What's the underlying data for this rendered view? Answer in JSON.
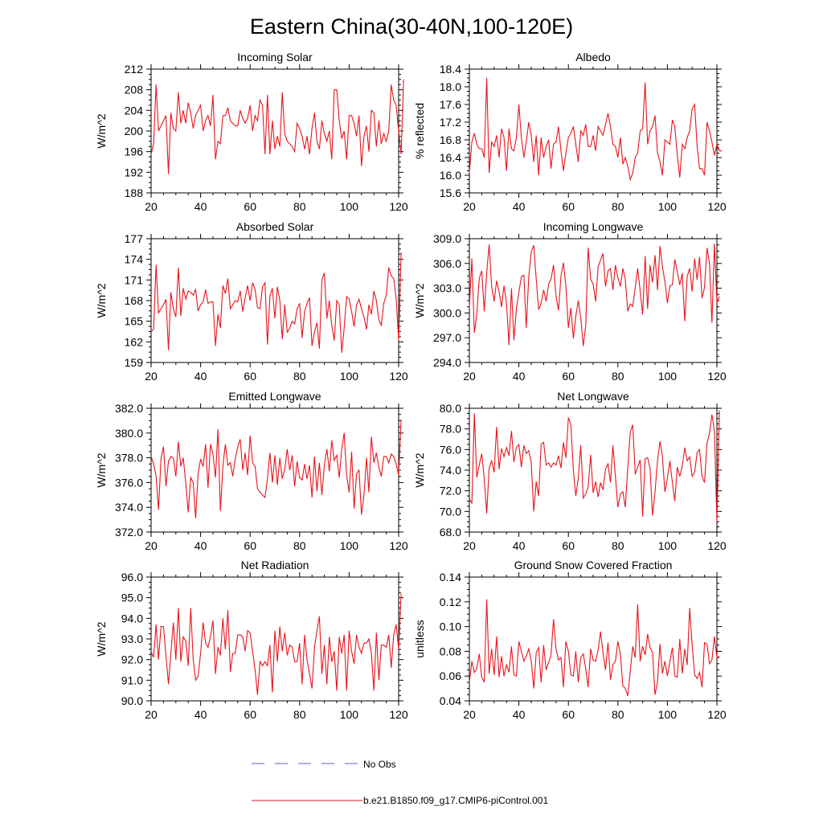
{
  "title": "Eastern China(30-40N,100-120E)",
  "colors": {
    "series": "#e8141c",
    "obs": "#5b5fc7",
    "axis": "#000000"
  },
  "legend": {
    "obs_label": "No Obs",
    "model_label": "b.e21.B1850.f09_g17.CMIP6-piControl.001"
  },
  "chart_data": [
    {
      "type": "line",
      "title": "Incoming Solar",
      "ylabel": "W/m^2",
      "xlim": [
        20,
        120
      ],
      "xticks": [
        20,
        40,
        60,
        80,
        100,
        120
      ],
      "ylim": [
        188,
        212
      ],
      "yticks": [
        "188",
        "192",
        "196",
        "200",
        "204",
        "208",
        "212"
      ],
      "x_start": 20,
      "values": [
        195.5,
        197.5,
        209,
        200,
        201,
        202,
        203,
        191.7,
        203.5,
        200.5,
        200,
        207.5,
        201.5,
        204,
        201.5,
        205.5,
        203.5,
        200.5,
        203,
        204,
        205,
        200,
        202,
        203,
        201,
        207,
        194.5,
        198,
        197.5,
        203,
        203,
        204.5,
        202,
        201.5,
        201,
        201,
        204,
        202.5,
        201.5,
        202.5,
        205,
        200,
        203,
        202,
        206,
        205,
        195.5,
        207,
        195.5,
        202,
        196.5,
        199,
        197,
        207.5,
        199.5,
        198,
        197.5,
        197,
        196,
        201.5,
        200.5,
        199,
        196.5,
        199,
        195.5,
        200.5,
        203.5,
        198,
        196.5,
        202,
        199.5,
        198,
        200,
        194.5,
        208,
        208,
        202,
        198.5,
        200,
        194.5,
        203,
        203,
        201.5,
        199,
        203,
        193.2,
        199,
        201,
        196,
        204,
        203.5,
        197,
        202,
        197.5,
        199.5,
        198,
        200,
        209,
        206,
        205,
        200,
        195.5,
        210
      ]
    },
    {
      "type": "line",
      "title": "Albedo",
      "ylabel": "% reflected",
      "xlim": [
        20,
        120
      ],
      "xticks": [
        20,
        40,
        60,
        80,
        100,
        120
      ],
      "ylim": [
        15.6,
        18.4
      ],
      "yticks": [
        "15.6",
        "16.0",
        "16.4",
        "16.8",
        "17.2",
        "17.6",
        "18.0",
        "18.4"
      ],
      "x_start": 20,
      "values": [
        16.05,
        16.75,
        16.95,
        16.7,
        16.6,
        16.6,
        16.4,
        18.2,
        16.05,
        16.75,
        16.65,
        16.9,
        16.4,
        17.05,
        16.85,
        16.1,
        17.05,
        16.6,
        16.55,
        16.85,
        17.6,
        16.85,
        16.4,
        16.75,
        17.2,
        16.9,
        16.3,
        16.9,
        16.0,
        16.85,
        16.4,
        16.65,
        16.8,
        16.15,
        16.7,
        16.75,
        17.1,
        16.55,
        16.1,
        16.5,
        16.85,
        16.95,
        17.1,
        16.7,
        16.3,
        17.0,
        16.9,
        17.15,
        16.65,
        16.65,
        16.9,
        16.55,
        17.1,
        17.0,
        16.9,
        17.15,
        17.4,
        17.1,
        16.7,
        16.65,
        16.4,
        16.85,
        16.25,
        16.4,
        16.2,
        15.9,
        16.05,
        16.4,
        16.5,
        17.0,
        17.05,
        18.1,
        16.7,
        17.0,
        17.1,
        17.35,
        16.5,
        16.3,
        16.0,
        16.8,
        16.75,
        16.7,
        17.25,
        17.1,
        16.45,
        15.95,
        16.7,
        16.6,
        16.85,
        17.0,
        17.5,
        17.6,
        16.65,
        16.15,
        16.15,
        16.0,
        17.2,
        17.0,
        16.75,
        16.45,
        16.7,
        16.55,
        16.55
      ]
    },
    {
      "type": "line",
      "title": "Absorbed Solar",
      "ylabel": "W/m^2",
      "xlim": [
        20,
        120
      ],
      "xticks": [
        20,
        40,
        60,
        80,
        100,
        120
      ],
      "ylim": [
        159,
        177
      ],
      "yticks": [
        "159",
        "162",
        "165",
        "168",
        "171",
        "174",
        "177"
      ],
      "x_start": 20,
      "values": [
        163.5,
        163.8,
        173.2,
        166.2,
        166.8,
        167.4,
        168.2,
        160.8,
        169.2,
        166.8,
        165.6,
        172.8,
        165.8,
        169.8,
        168.2,
        169.4,
        169.2,
        168.8,
        169.6,
        166.5,
        167.4,
        167.8,
        169.6,
        167.6,
        167.8,
        167.8,
        161.4,
        166.0,
        164.0,
        170.2,
        169.0,
        171.2,
        166.8,
        167.4,
        168.0,
        167.8,
        169.4,
        166.4,
        168.4,
        170.2,
        168.0,
        170.6,
        169.6,
        167.0,
        166.8,
        170.0,
        170.6,
        161.6,
        168.6,
        169.8,
        165.4,
        170.0,
        168.0,
        162.4,
        167.4,
        163.4,
        164.0,
        165.0,
        164.6,
        166.8,
        167.6,
        162.6,
        166.4,
        167.6,
        168.4,
        161.4,
        163.4,
        164.8,
        161.0,
        171.0,
        172.0,
        165.4,
        168.0,
        164.4,
        162.2,
        168.0,
        167.4,
        160.4,
        164.0,
        168.6,
        168.2,
        166.4,
        164.2,
        167.4,
        168.2,
        166.8,
        165.6,
        163.8,
        167.4,
        166.0,
        169.4,
        168.0,
        165.2,
        164.4,
        167.6,
        168.8,
        172.8,
        171.6,
        171.2,
        168.4,
        162.2,
        175.0
      ]
    },
    {
      "type": "line",
      "title": "Incoming Longwave",
      "ylabel": "W/m^2",
      "xlim": [
        20,
        120
      ],
      "xticks": [
        20,
        40,
        60,
        80,
        100,
        120
      ],
      "ylim": [
        294.0,
        309.0
      ],
      "yticks": [
        "294.0",
        "297.0",
        "300.0",
        "303.0",
        "306.0",
        "309.0"
      ],
      "x_start": 20,
      "values": [
        300.7,
        306.6,
        297.6,
        299.8,
        304.2,
        305.1,
        300.2,
        304.9,
        308.3,
        303.2,
        301.4,
        303.9,
        302.6,
        300.7,
        303.3,
        301.2,
        296.1,
        303.0,
        296.7,
        300.5,
        302.5,
        304.4,
        304.6,
        298.2,
        304.4,
        307.4,
        308.2,
        304.1,
        300.4,
        301.2,
        302.8,
        301.4,
        303.5,
        304.1,
        305.8,
        302.1,
        300.3,
        304.5,
        306.1,
        303.2,
        298.2,
        300.6,
        296.9,
        299.6,
        301.5,
        299.4,
        296.0,
        298.5,
        307.9,
        304.1,
        303.5,
        301.4,
        305.6,
        306.4,
        307.2,
        303.2,
        305.1,
        305.4,
        302.8,
        305.8,
        304.3,
        303.2,
        305.4,
        304.1,
        300.2,
        301.1,
        300.8,
        303.1,
        305.4,
        302.7,
        299.8,
        306.9,
        300.5,
        305.8,
        303.7,
        307.0,
        302.8,
        308.1,
        305.6,
        303.8,
        301.2,
        303.3,
        303.4,
        306.5,
        305.0,
        303.4,
        304.8,
        299.0,
        304.4,
        305.4,
        302.6,
        306.6,
        304.0,
        306.8,
        301.8,
        303.1,
        307.9,
        306.0,
        298.8,
        308.4,
        301.2,
        302.0
      ]
    },
    {
      "type": "line",
      "title": "Emitted Longwave",
      "ylabel": "W/m^2",
      "xlim": [
        20,
        120
      ],
      "xticks": [
        20,
        40,
        60,
        80,
        100,
        120
      ],
      "ylim": [
        372.0,
        382.0
      ],
      "yticks": [
        "372.0",
        "374.0",
        "376.0",
        "378.0",
        "380.0",
        "382.0"
      ],
      "x_start": 20,
      "values": [
        378.1,
        377.5,
        376.5,
        373.8,
        377.9,
        378.9,
        375.7,
        377.7,
        378.1,
        378.0,
        376.5,
        379.3,
        377.3,
        378.0,
        376.0,
        373.6,
        376.4,
        376.0,
        373.1,
        376.7,
        377.9,
        377.3,
        379.1,
        375.6,
        379.1,
        378.3,
        376.4,
        380.3,
        373.7,
        377.3,
        379.1,
        377.4,
        377.6,
        376.5,
        377.9,
        378.9,
        379.5,
        377.0,
        378.4,
        376.6,
        379.8,
        377.6,
        377.3,
        375.5,
        375.2,
        375.0,
        374.8,
        376.3,
        378.4,
        376.0,
        378.2,
        375.8,
        378.0,
        376.3,
        377.1,
        378.7,
        377.0,
        378.2,
        375.7,
        377.7,
        376.4,
        376.2,
        377.5,
        376.3,
        377.4,
        374.8,
        378.1,
        375.3,
        377.6,
        375.0,
        377.4,
        378.7,
        376.9,
        379.4,
        377.8,
        378.2,
        376.4,
        378.7,
        380.0,
        376.6,
        375.2,
        378.5,
        373.9,
        376.7,
        377.0,
        373.4,
        375.0,
        378.0,
        375.2,
        379.7,
        377.6,
        378.4,
        377.2,
        376.5,
        378.1,
        378.1,
        377.6,
        378.3,
        378.1,
        377.5,
        376.6,
        381.1
      ]
    },
    {
      "type": "line",
      "title": "Net Longwave",
      "ylabel": "W/m^2",
      "xlim": [
        20,
        120
      ],
      "xticks": [
        20,
        40,
        60,
        80,
        100,
        120
      ],
      "ylim": [
        68.0,
        80.0
      ],
      "yticks": [
        "68.0",
        "70.0",
        "72.0",
        "74.0",
        "76.0",
        "78.0",
        "80.0"
      ],
      "x_start": 20,
      "values": [
        71.2,
        70.8,
        79.5,
        73.3,
        74.5,
        75.6,
        73.2,
        69.8,
        74.2,
        74.9,
        73.8,
        78.2,
        74.1,
        76.1,
        75.3,
        76.2,
        75.4,
        77.8,
        74.8,
        76.2,
        76.5,
        74.3,
        76.4,
        75.6,
        75.9,
        74.7,
        70.0,
        72.9,
        71.5,
        76.5,
        76.7,
        74.5,
        74.7,
        74.3,
        74.7,
        74.5,
        75.4,
        74.2,
        76.7,
        75.2,
        79.1,
        78.4,
        74.0,
        71.5,
        73.2,
        76.4,
        71.3,
        71.7,
        72.4,
        75.5,
        71.8,
        72.9,
        71.4,
        72.8,
        72.1,
        74.1,
        74.6,
        72.8,
        76.4,
        73.4,
        70.4,
        71.7,
        71.9,
        70.4,
        74.2,
        77.7,
        78.4,
        73.6,
        74.3,
        75.0,
        69.5,
        75.1,
        75.2,
        74.2,
        69.6,
        71.9,
        74.9,
        76.8,
        75.3,
        71.9,
        73.2,
        74.9,
        72.8,
        71.0,
        74.3,
        73.4,
        74.4,
        76.2,
        74.9,
        75.3,
        73.4,
        73.8,
        75.7,
        76.0,
        73.4,
        72.8,
        76.6,
        77.6,
        79.4,
        77.8,
        69.0,
        79.8
      ]
    },
    {
      "type": "line",
      "title": "Net Radiation",
      "ylabel": "W/m^2",
      "xlim": [
        20,
        120
      ],
      "xticks": [
        20,
        40,
        60,
        80,
        100,
        120
      ],
      "ylim": [
        90.0,
        96.0
      ],
      "yticks": [
        "90.0",
        "91.0",
        "92.0",
        "93.0",
        "94.0",
        "95.0",
        "96.0"
      ],
      "x_start": 20,
      "values": [
        92.4,
        92.1,
        93.7,
        92.0,
        93.6,
        93.6,
        92.2,
        90.8,
        92.3,
        93.8,
        92.0,
        94.5,
        91.9,
        93.1,
        92.9,
        91.7,
        94.5,
        92.0,
        91.0,
        91.2,
        92.3,
        93.8,
        92.8,
        92.6,
        93.1,
        93.9,
        91.3,
        92.6,
        92.2,
        94.0,
        92.5,
        94.4,
        91.4,
        92.3,
        92.3,
        93.2,
        93.2,
        93.1,
        92.4,
        93.4,
        93.3,
        92.4,
        91.5,
        90.3,
        91.9,
        91.7,
        91.9,
        91.7,
        92.7,
        90.4,
        93.4,
        91.9,
        93.6,
        92.4,
        93.3,
        92.2,
        92.7,
        92.6,
        91.9,
        91.9,
        92.8,
        90.8,
        93.2,
        92.0,
        91.3,
        90.6,
        92.6,
        93.4,
        94.1,
        91.3,
        92.7,
        90.8,
        93.1,
        91.9,
        92.4,
        90.5,
        93.1,
        92.3,
        93.2,
        90.5,
        93.4,
        92.4,
        91.8,
        93.2,
        92.6,
        92.3,
        92.8,
        92.8,
        93.0,
        92.3,
        90.5,
        93.3,
        91.0,
        92.7,
        92.7,
        92.6,
        93.2,
        91.6,
        93.2,
        93.7,
        92.5,
        95.2
      ]
    },
    {
      "type": "line",
      "title": "Ground Snow Covered Fraction",
      "ylabel": "unitless",
      "xlim": [
        20,
        120
      ],
      "xticks": [
        20,
        40,
        60,
        80,
        100,
        120
      ],
      "ylim": [
        0.04,
        0.14
      ],
      "yticks": [
        "0.04",
        "0.06",
        "0.08",
        "0.10",
        "0.12",
        "0.14"
      ],
      "x_start": 20,
      "values": [
        0.055,
        0.072,
        0.063,
        0.066,
        0.078,
        0.059,
        0.055,
        0.122,
        0.062,
        0.082,
        0.061,
        0.092,
        0.059,
        0.076,
        0.06,
        0.069,
        0.063,
        0.084,
        0.061,
        0.06,
        0.088,
        0.08,
        0.072,
        0.076,
        0.082,
        0.072,
        0.05,
        0.079,
        0.083,
        0.055,
        0.085,
        0.065,
        0.071,
        0.077,
        0.106,
        0.082,
        0.073,
        0.075,
        0.051,
        0.088,
        0.08,
        0.061,
        0.06,
        0.08,
        0.055,
        0.075,
        0.078,
        0.066,
        0.051,
        0.082,
        0.073,
        0.072,
        0.081,
        0.096,
        0.079,
        0.065,
        0.087,
        0.057,
        0.069,
        0.072,
        0.088,
        0.078,
        0.052,
        0.05,
        0.044,
        0.064,
        0.084,
        0.075,
        0.118,
        0.072,
        0.084,
        0.077,
        0.094,
        0.083,
        0.079,
        0.045,
        0.055,
        0.086,
        0.062,
        0.072,
        0.06,
        0.072,
        0.083,
        0.06,
        0.059,
        0.09,
        0.062,
        0.082,
        0.069,
        0.115,
        0.085,
        0.061,
        0.058,
        0.063,
        0.051,
        0.087,
        0.086,
        0.07,
        0.073,
        0.092,
        0.075,
        0.076
      ]
    }
  ]
}
